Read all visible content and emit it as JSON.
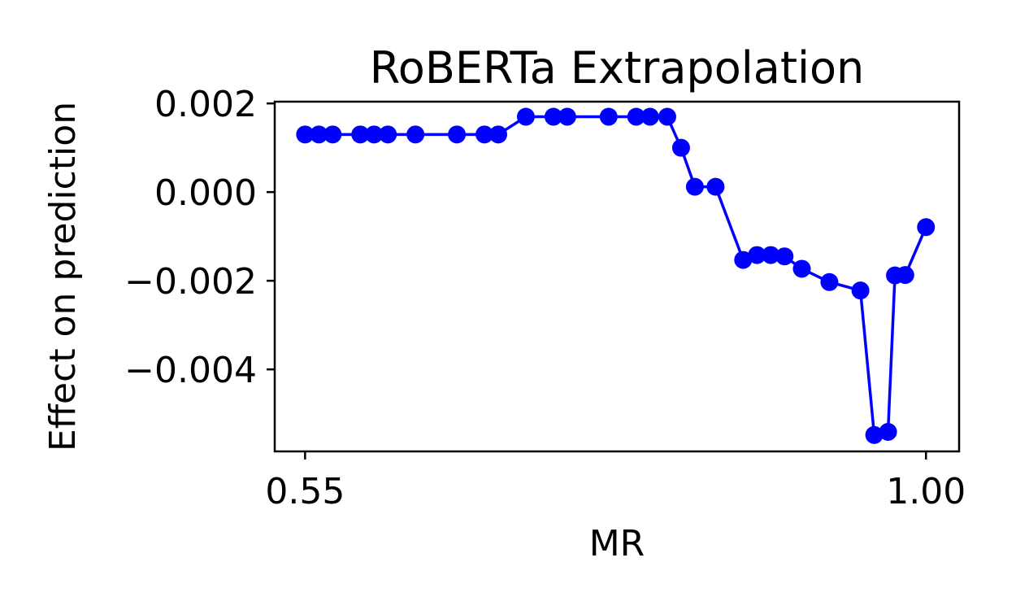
{
  "chart_data": {
    "type": "line",
    "title": "RoBERTa Extrapolation",
    "xlabel": "MR",
    "ylabel": "Effect on prediction",
    "xlim": [
      0.528,
      1.024
    ],
    "ylim": [
      -0.00585,
      0.00204
    ],
    "grid": false,
    "legend": "none",
    "xticks": [
      {
        "value": 0.55,
        "label": "0.55"
      },
      {
        "value": 1.0,
        "label": "1.00"
      }
    ],
    "yticks": [
      {
        "value": 0.002,
        "label": "0.002"
      },
      {
        "value": 0.0,
        "label": "0.000"
      },
      {
        "value": -0.002,
        "label": "−0.002"
      },
      {
        "value": -0.004,
        "label": "−0.004"
      }
    ],
    "series": [
      {
        "name": "RoBERTa",
        "color": "#0000ff",
        "marker": "circle",
        "x": [
          0.55,
          0.56,
          0.57,
          0.59,
          0.6,
          0.61,
          0.63,
          0.66,
          0.68,
          0.69,
          0.71,
          0.73,
          0.74,
          0.77,
          0.79,
          0.8,
          0.8125,
          0.8225,
          0.8325,
          0.8475,
          0.8675,
          0.8775,
          0.8875,
          0.8975,
          0.91,
          0.93,
          0.9525,
          0.9625,
          0.9725,
          0.9775,
          0.985,
          1.0
        ],
        "y": [
          0.0013,
          0.0013,
          0.0013,
          0.0013,
          0.0013,
          0.0013,
          0.0013,
          0.0013,
          0.0013,
          0.0013,
          0.0017,
          0.0017,
          0.0017,
          0.0017,
          0.0017,
          0.0017,
          0.0017,
          0.001,
          0.00012,
          0.00012,
          -0.00153,
          -0.00142,
          -0.00142,
          -0.00145,
          -0.00173,
          -0.00203,
          -0.00222,
          -0.00548,
          -0.00541,
          -0.00188,
          -0.00187,
          -0.00079
        ]
      }
    ]
  }
}
